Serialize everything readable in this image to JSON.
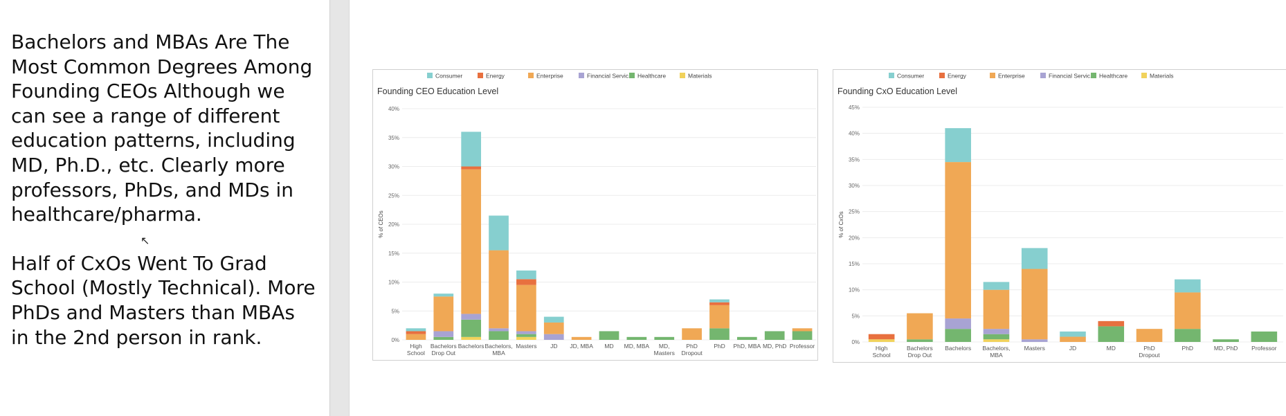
{
  "left_panel": {
    "paragraphs": [
      "Bachelors and MBAs Are The Most Common Degrees Among Founding CEOs Although we can see a range of different education patterns, including MD, Ph.D., etc. Clearly more professors, PhDs, and MDs in healthcare/pharma.",
      "Half of CxOs Went To Grad School (Mostly Technical). More PhDs and Masters than MBAs in the 2nd person in rank."
    ]
  },
  "colors": {
    "Consumer": "#86cfcf",
    "Energy": "#e8703f",
    "Enterprise": "#f0a855",
    "Financial Servic..": "#a8a3d3",
    "Healthcare": "#74b66f",
    "Materials": "#f1d25b"
  },
  "chart_data": [
    {
      "type": "bar",
      "stacked": true,
      "title": "Founding CEO Education Level",
      "ylabel": "% of CEOs",
      "xlabel": "",
      "ylim": [
        0,
        40
      ],
      "yticks": [
        "0%",
        "5%",
        "10%",
        "15%",
        "20%",
        "25%",
        "30%",
        "35%",
        "40%"
      ],
      "legend": [
        "Consumer",
        "Energy",
        "Enterprise",
        "Financial Servic..",
        "Healthcare",
        "Materials"
      ],
      "categories": [
        "High School",
        "Bachelors Drop Out",
        "Bachelors",
        "Bachelors, MBA",
        "Masters",
        "JD",
        "JD, MBA",
        "MD",
        "MD, MBA",
        "MD, Masters",
        "PhD Dropout",
        "PhD",
        "PhD, MBA",
        "MD, PhD",
        "Professor"
      ],
      "series": [
        {
          "name": "Materials",
          "values": [
            0,
            0,
            0.5,
            0,
            0.5,
            0,
            0,
            0,
            0,
            0,
            0,
            0,
            0,
            0,
            0
          ]
        },
        {
          "name": "Healthcare",
          "values": [
            0,
            0.5,
            3.0,
            1.5,
            0.5,
            0,
            0,
            1.5,
            0.5,
            0.5,
            0,
            2.0,
            0.5,
            1.5,
            1.5
          ]
        },
        {
          "name": "Financial Servic..",
          "values": [
            0,
            1.0,
            1.0,
            0.5,
            0.5,
            1.0,
            0,
            0,
            0,
            0,
            0,
            0,
            0,
            0,
            0
          ]
        },
        {
          "name": "Enterprise",
          "values": [
            1.0,
            6.0,
            25.0,
            13.5,
            8.0,
            2.0,
            0.5,
            0,
            0,
            0,
            2.0,
            4.0,
            0,
            0,
            0.5
          ]
        },
        {
          "name": "Energy",
          "values": [
            0.5,
            0,
            0.5,
            0,
            1.0,
            0,
            0,
            0,
            0,
            0,
            0,
            0.5,
            0,
            0,
            0
          ]
        },
        {
          "name": "Consumer",
          "values": [
            0.5,
            0.5,
            6.0,
            6.0,
            1.5,
            1.0,
            0,
            0,
            0,
            0,
            0,
            0.5,
            0,
            0,
            0
          ]
        }
      ]
    },
    {
      "type": "bar",
      "stacked": true,
      "title": "Founding CxO Education Level",
      "ylabel": "% of CxOs",
      "xlabel": "",
      "ylim": [
        0,
        45
      ],
      "yticks": [
        "0%",
        "5%",
        "10%",
        "15%",
        "20%",
        "25%",
        "30%",
        "35%",
        "40%",
        "45%"
      ],
      "legend": [
        "Consumer",
        "Energy",
        "Enterprise",
        "Financial Servic..",
        "Healthcare",
        "Materials"
      ],
      "categories": [
        "High School",
        "Bachelors Drop Out",
        "Bachelors",
        "Bachelors, MBA",
        "Masters",
        "JD",
        "MD",
        "PhD Dropout",
        "PhD",
        "MD, PhD",
        "Professor"
      ],
      "series": [
        {
          "name": "Materials",
          "values": [
            0.5,
            0,
            0,
            0.5,
            0,
            0,
            0,
            0,
            0,
            0,
            0
          ]
        },
        {
          "name": "Healthcare",
          "values": [
            0,
            0.5,
            2.5,
            1.0,
            0,
            0,
            3.0,
            0,
            2.5,
            0.5,
            2.0
          ]
        },
        {
          "name": "Financial Servic..",
          "values": [
            0,
            0,
            2.0,
            1.0,
            0.5,
            0,
            0,
            0,
            0,
            0,
            0
          ]
        },
        {
          "name": "Enterprise",
          "values": [
            0,
            5.0,
            30.0,
            7.5,
            13.5,
            1.0,
            0,
            2.5,
            7.0,
            0,
            0
          ]
        },
        {
          "name": "Energy",
          "values": [
            1.0,
            0,
            0,
            0,
            0,
            0,
            1.0,
            0,
            0,
            0,
            0
          ]
        },
        {
          "name": "Consumer",
          "values": [
            0,
            0,
            6.5,
            1.5,
            4.0,
            1.0,
            0,
            0,
            2.5,
            0,
            0
          ]
        }
      ]
    }
  ]
}
